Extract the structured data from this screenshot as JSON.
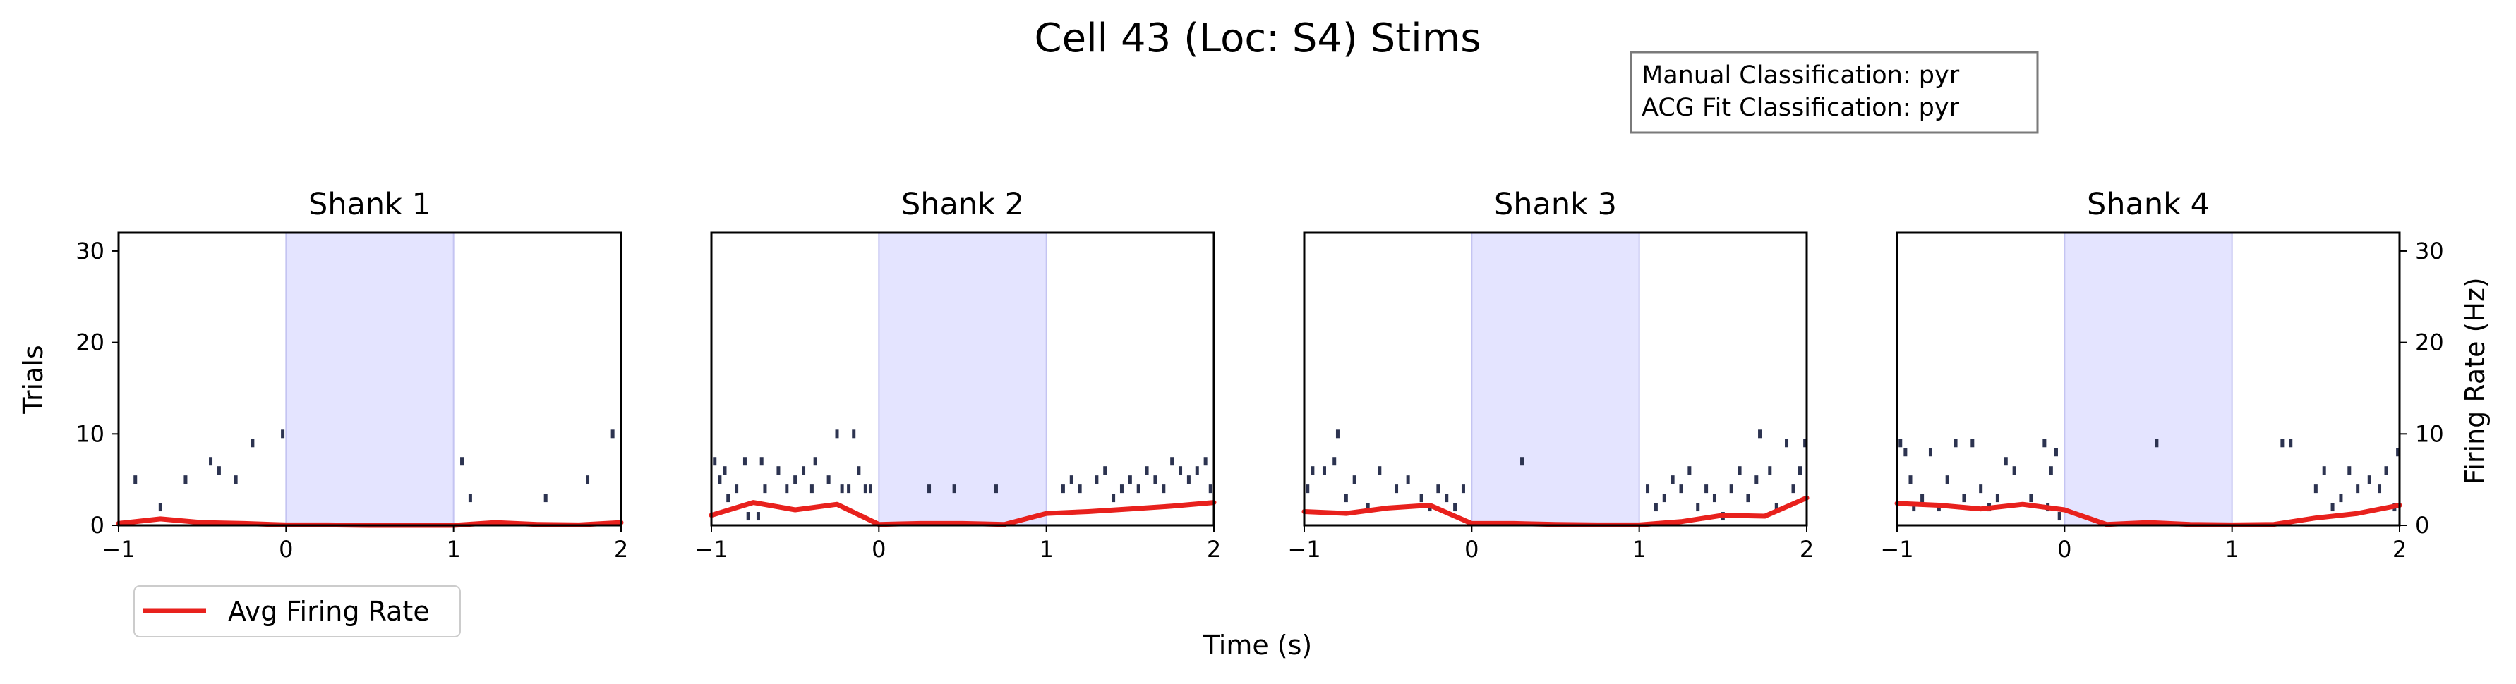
{
  "figure": {
    "title": "Cell 43 (Loc: S4) Stims",
    "xlabel": "Time (s)",
    "left_ylabel": "Trials",
    "right_ylabel": "Firing Rate (Hz)",
    "info_box": {
      "manual": "Manual Classification: pyr",
      "acg": "ACG Fit Classification: pyr"
    },
    "legend": {
      "label": "Avg Firing Rate",
      "placement": "lower-left, below first panel"
    }
  },
  "colors": {
    "raster": "#2c3350",
    "rate_line": "#e8211d",
    "stim_fill": "#e4e4ff",
    "stim_edge": "#c4c4f2",
    "axes": "#000000"
  },
  "chart_data": [
    {
      "type": "scatter",
      "title": "Shank 1",
      "xlim": [
        -1,
        2
      ],
      "ylim": [
        0,
        32
      ],
      "xticks": [
        "−1",
        "0",
        "1",
        "2"
      ],
      "yticks": [
        "0",
        "10",
        "20",
        "30"
      ],
      "rate_ylim": [
        0,
        32
      ],
      "stim_window": [
        0,
        1
      ],
      "spikes": [
        [
          -0.9,
          5
        ],
        [
          -0.75,
          2
        ],
        [
          -0.6,
          5
        ],
        [
          -0.45,
          7
        ],
        [
          -0.4,
          6
        ],
        [
          -0.3,
          5
        ],
        [
          -0.2,
          9
        ],
        [
          -0.02,
          10
        ],
        [
          1.05,
          7
        ],
        [
          1.1,
          3
        ],
        [
          1.55,
          3
        ],
        [
          1.8,
          5
        ],
        [
          1.95,
          10
        ]
      ],
      "rate": {
        "x": [
          -1,
          -0.75,
          -0.5,
          -0.25,
          0,
          0.25,
          0.5,
          0.75,
          1,
          1.25,
          1.5,
          1.75,
          2
        ],
        "y": [
          0.2,
          0.7,
          0.3,
          0.2,
          0.05,
          0.05,
          0,
          0,
          0,
          0.3,
          0.1,
          0.05,
          0.3
        ]
      }
    },
    {
      "type": "scatter",
      "title": "Shank 2",
      "xlim": [
        -1,
        2
      ],
      "ylim": [
        0,
        32
      ],
      "xticks": [
        "−1",
        "0",
        "1",
        "2"
      ],
      "yticks": [],
      "rate_ylim": [
        0,
        32
      ],
      "stim_window": [
        0,
        1
      ],
      "spikes": [
        [
          -0.98,
          7
        ],
        [
          -0.95,
          5
        ],
        [
          -0.92,
          6
        ],
        [
          -0.9,
          3
        ],
        [
          -0.85,
          4
        ],
        [
          -0.8,
          7
        ],
        [
          -0.78,
          1
        ],
        [
          -0.72,
          1
        ],
        [
          -0.7,
          7
        ],
        [
          -0.68,
          4
        ],
        [
          -0.6,
          6
        ],
        [
          -0.55,
          4
        ],
        [
          -0.5,
          5
        ],
        [
          -0.45,
          6
        ],
        [
          -0.4,
          4
        ],
        [
          -0.38,
          7
        ],
        [
          -0.3,
          5
        ],
        [
          -0.25,
          10
        ],
        [
          -0.22,
          4
        ],
        [
          -0.18,
          4
        ],
        [
          -0.15,
          10
        ],
        [
          -0.12,
          6
        ],
        [
          -0.08,
          4
        ],
        [
          -0.05,
          4
        ],
        [
          0.3,
          4
        ],
        [
          0.45,
          4
        ],
        [
          0.7,
          4
        ],
        [
          1.1,
          4
        ],
        [
          1.15,
          5
        ],
        [
          1.2,
          4
        ],
        [
          1.3,
          5
        ],
        [
          1.35,
          6
        ],
        [
          1.4,
          3
        ],
        [
          1.45,
          4
        ],
        [
          1.5,
          5
        ],
        [
          1.55,
          4
        ],
        [
          1.6,
          6
        ],
        [
          1.65,
          5
        ],
        [
          1.7,
          4
        ],
        [
          1.75,
          7
        ],
        [
          1.8,
          6
        ],
        [
          1.85,
          5
        ],
        [
          1.9,
          6
        ],
        [
          1.95,
          7
        ],
        [
          1.98,
          4
        ]
      ],
      "rate": {
        "x": [
          -1,
          -0.75,
          -0.5,
          -0.25,
          0,
          0.25,
          0.5,
          0.75,
          1,
          1.25,
          1.5,
          1.75,
          2
        ],
        "y": [
          1.1,
          2.5,
          1.7,
          2.3,
          0.1,
          0.2,
          0.2,
          0.1,
          1.3,
          1.5,
          1.8,
          2.1,
          2.5
        ]
      }
    },
    {
      "type": "scatter",
      "title": "Shank 3",
      "xlim": [
        -1,
        2
      ],
      "ylim": [
        0,
        32
      ],
      "xticks": [
        "−1",
        "0",
        "1",
        "2"
      ],
      "yticks": [],
      "rate_ylim": [
        0,
        32
      ],
      "stim_window": [
        0,
        1
      ],
      "spikes": [
        [
          -0.98,
          4
        ],
        [
          -0.95,
          6
        ],
        [
          -0.88,
          6
        ],
        [
          -0.82,
          7
        ],
        [
          -0.8,
          10
        ],
        [
          -0.75,
          3
        ],
        [
          -0.7,
          5
        ],
        [
          -0.62,
          2
        ],
        [
          -0.55,
          6
        ],
        [
          -0.45,
          4
        ],
        [
          -0.38,
          5
        ],
        [
          -0.3,
          3
        ],
        [
          -0.25,
          2
        ],
        [
          -0.2,
          4
        ],
        [
          -0.15,
          3
        ],
        [
          -0.1,
          2
        ],
        [
          -0.05,
          4
        ],
        [
          0.3,
          7
        ],
        [
          1.05,
          4
        ],
        [
          1.1,
          2
        ],
        [
          1.15,
          3
        ],
        [
          1.2,
          5
        ],
        [
          1.25,
          4
        ],
        [
          1.3,
          6
        ],
        [
          1.35,
          2
        ],
        [
          1.4,
          4
        ],
        [
          1.45,
          3
        ],
        [
          1.5,
          1
        ],
        [
          1.55,
          4
        ],
        [
          1.6,
          6
        ],
        [
          1.65,
          3
        ],
        [
          1.7,
          5
        ],
        [
          1.72,
          10
        ],
        [
          1.78,
          6
        ],
        [
          1.82,
          2
        ],
        [
          1.88,
          9
        ],
        [
          1.92,
          4
        ],
        [
          1.96,
          6
        ],
        [
          1.99,
          9
        ]
      ],
      "rate": {
        "x": [
          -1,
          -0.75,
          -0.5,
          -0.25,
          0,
          0.25,
          0.5,
          0.75,
          1,
          1.25,
          1.5,
          1.75,
          2
        ],
        "y": [
          1.5,
          1.3,
          1.9,
          2.2,
          0.2,
          0.2,
          0.1,
          0.05,
          0.05,
          0.4,
          1.1,
          1.0,
          3.0
        ]
      }
    },
    {
      "type": "scatter",
      "title": "Shank 4",
      "xlim": [
        -1,
        2
      ],
      "ylim": [
        0,
        32
      ],
      "xticks": [
        "−1",
        "0",
        "1",
        "2"
      ],
      "yticks": [
        "0",
        "10",
        "20",
        "30"
      ],
      "rate_ylim": [
        0,
        32
      ],
      "stim_window": [
        0,
        1
      ],
      "spikes": [
        [
          -0.98,
          9
        ],
        [
          -0.95,
          8
        ],
        [
          -0.92,
          5
        ],
        [
          -0.9,
          2
        ],
        [
          -0.85,
          3
        ],
        [
          -0.8,
          8
        ],
        [
          -0.75,
          2
        ],
        [
          -0.7,
          5
        ],
        [
          -0.65,
          9
        ],
        [
          -0.6,
          3
        ],
        [
          -0.55,
          9
        ],
        [
          -0.5,
          4
        ],
        [
          -0.45,
          2
        ],
        [
          -0.4,
          3
        ],
        [
          -0.35,
          7
        ],
        [
          -0.3,
          6
        ],
        [
          -0.2,
          3
        ],
        [
          -0.12,
          9
        ],
        [
          -0.1,
          2
        ],
        [
          -0.08,
          6
        ],
        [
          -0.05,
          8
        ],
        [
          -0.03,
          1
        ],
        [
          0.55,
          9
        ],
        [
          1.3,
          9
        ],
        [
          1.35,
          9
        ],
        [
          1.5,
          4
        ],
        [
          1.55,
          6
        ],
        [
          1.6,
          2
        ],
        [
          1.65,
          3
        ],
        [
          1.7,
          6
        ],
        [
          1.75,
          4
        ],
        [
          1.82,
          5
        ],
        [
          1.88,
          4
        ],
        [
          1.92,
          6
        ],
        [
          1.97,
          2
        ],
        [
          1.99,
          8
        ]
      ],
      "rate": {
        "x": [
          -1,
          -0.75,
          -0.5,
          -0.25,
          0,
          0.25,
          0.5,
          0.75,
          1,
          1.25,
          1.5,
          1.75,
          2
        ],
        "y": [
          2.4,
          2.2,
          1.8,
          2.3,
          1.7,
          0.1,
          0.3,
          0.1,
          0.05,
          0.1,
          0.8,
          1.3,
          2.2
        ]
      }
    }
  ]
}
